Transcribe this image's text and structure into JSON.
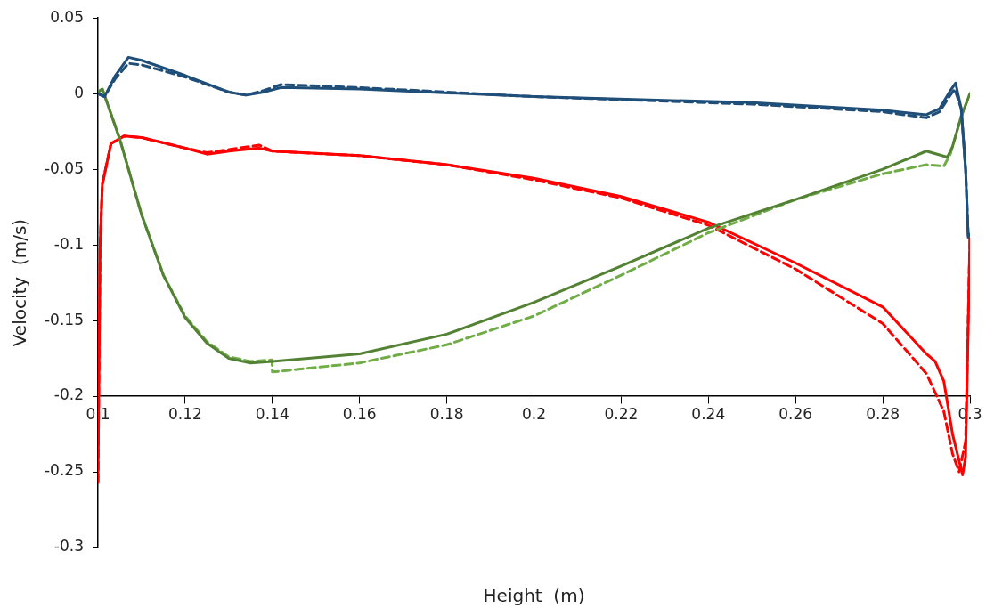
{
  "chart_data": {
    "type": "line",
    "xlabel": "Height  (m)",
    "ylabel": "Velocity  (m/s)",
    "xlim": [
      0.1,
      0.3
    ],
    "ylim": [
      -0.3,
      0.05
    ],
    "xticks": [
      0.1,
      0.12,
      0.14,
      0.16,
      0.18,
      0.2,
      0.22,
      0.24,
      0.26,
      0.28,
      0.3
    ],
    "yticks": [
      -0.3,
      -0.25,
      -0.2,
      -0.15,
      -0.1,
      -0.05,
      0,
      0.05
    ],
    "grid": false,
    "legend": false,
    "marker": "none",
    "series": [
      {
        "color": "#1f4e79",
        "line_style": "solid",
        "x": [
          0.1,
          0.1015,
          0.104,
          0.107,
          0.11,
          0.12,
          0.13,
          0.134,
          0.138,
          0.142,
          0.16,
          0.2,
          0.25,
          0.28,
          0.29,
          0.293,
          0.2955,
          0.2967,
          0.298,
          0.299,
          0.2996,
          0.3
        ],
        "values": [
          0.0,
          -0.002,
          0.012,
          0.024,
          0.022,
          0.012,
          0.001,
          -0.001,
          0.001,
          0.004,
          0.003,
          -0.002,
          -0.006,
          -0.011,
          -0.014,
          -0.01,
          0.002,
          0.007,
          -0.01,
          -0.05,
          -0.095,
          -0.093
        ]
      },
      {
        "color": "#1f4e79",
        "line_style": "dashed",
        "x": [
          0.1,
          0.1015,
          0.104,
          0.107,
          0.11,
          0.12,
          0.13,
          0.134,
          0.138,
          0.142,
          0.16,
          0.2,
          0.25,
          0.28,
          0.29,
          0.293,
          0.2955,
          0.2965,
          0.298,
          0.299,
          0.2996,
          0.3
        ],
        "values": [
          0.0,
          -0.002,
          0.01,
          0.02,
          0.019,
          0.011,
          0.001,
          -0.001,
          0.002,
          0.006,
          0.004,
          -0.002,
          -0.007,
          -0.012,
          -0.016,
          -0.012,
          -0.001,
          0.003,
          -0.01,
          -0.05,
          -0.094,
          -0.093
        ]
      },
      {
        "color": "#548235",
        "line_style": "solid",
        "x": [
          0.1,
          0.101,
          0.105,
          0.11,
          0.115,
          0.12,
          0.125,
          0.13,
          0.135,
          0.14,
          0.16,
          0.18,
          0.2,
          0.22,
          0.24,
          0.26,
          0.28,
          0.29,
          0.2948,
          0.296,
          0.298,
          0.3
        ],
        "values": [
          0.001,
          0.003,
          -0.03,
          -0.08,
          -0.12,
          -0.148,
          -0.165,
          -0.175,
          -0.178,
          -0.177,
          -0.172,
          -0.159,
          -0.138,
          -0.114,
          -0.089,
          -0.07,
          -0.05,
          -0.038,
          -0.042,
          -0.035,
          -0.015,
          0.0
        ]
      },
      {
        "color": "#70ad47",
        "line_style": "dashed",
        "x": [
          0.1,
          0.101,
          0.105,
          0.11,
          0.115,
          0.12,
          0.125,
          0.13,
          0.135,
          0.1399,
          0.14,
          0.16,
          0.18,
          0.2,
          0.22,
          0.24,
          0.26,
          0.28,
          0.29,
          0.294,
          0.2955,
          0.298,
          0.3
        ],
        "values": [
          0.001,
          0.003,
          -0.03,
          -0.08,
          -0.12,
          -0.147,
          -0.164,
          -0.174,
          -0.177,
          -0.176,
          -0.184,
          -0.178,
          -0.166,
          -0.147,
          -0.12,
          -0.092,
          -0.07,
          -0.053,
          -0.047,
          -0.048,
          -0.04,
          -0.015,
          0.0
        ]
      },
      {
        "color": "#ff0000",
        "line_style": "solid",
        "x": [
          0.1,
          0.1005,
          0.101,
          0.103,
          0.106,
          0.11,
          0.12,
          0.125,
          0.13,
          0.137,
          0.14,
          0.16,
          0.18,
          0.2,
          0.22,
          0.24,
          0.26,
          0.28,
          0.29,
          0.292,
          0.294,
          0.296,
          0.2983,
          0.299,
          0.3
        ],
        "values": [
          -0.257,
          -0.1,
          -0.06,
          -0.033,
          -0.028,
          -0.029,
          -0.036,
          -0.04,
          -0.038,
          -0.036,
          -0.038,
          -0.041,
          -0.047,
          -0.056,
          -0.068,
          -0.085,
          -0.112,
          -0.141,
          -0.172,
          -0.177,
          -0.19,
          -0.225,
          -0.252,
          -0.24,
          -0.095
        ]
      },
      {
        "color": "#ff0000",
        "line_style": "dashed",
        "x": [
          0.1,
          0.1005,
          0.101,
          0.103,
          0.106,
          0.11,
          0.12,
          0.125,
          0.13,
          0.137,
          0.14,
          0.16,
          0.18,
          0.2,
          0.22,
          0.24,
          0.26,
          0.28,
          0.29,
          0.294,
          0.296,
          0.2975,
          0.299,
          0.3
        ],
        "values": [
          -0.257,
          -0.1,
          -0.06,
          -0.033,
          -0.028,
          -0.029,
          -0.036,
          -0.039,
          -0.037,
          -0.034,
          -0.038,
          -0.041,
          -0.047,
          -0.057,
          -0.069,
          -0.087,
          -0.116,
          -0.152,
          -0.185,
          -0.21,
          -0.238,
          -0.25,
          -0.23,
          -0.095
        ]
      }
    ]
  }
}
